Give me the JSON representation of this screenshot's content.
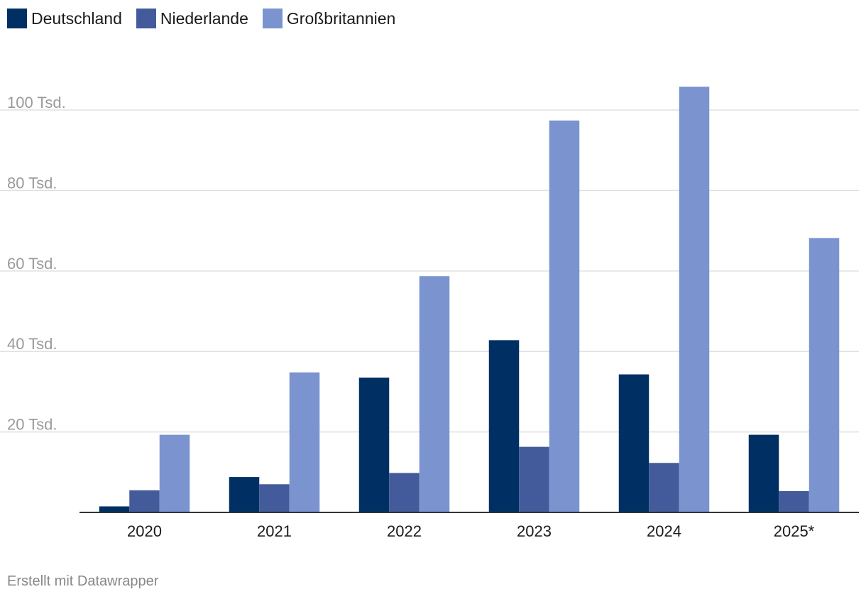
{
  "chart_data": {
    "type": "bar",
    "categories": [
      "2020",
      "2021",
      "2022",
      "2023",
      "2024",
      "2025*"
    ],
    "series": [
      {
        "name": "Deutschland",
        "color": "#003063",
        "values": [
          1500,
          8800,
          33500,
          42800,
          34300,
          19300
        ]
      },
      {
        "name": "Niederlande",
        "color": "#435b9a",
        "values": [
          5500,
          7000,
          9800,
          16300,
          12300,
          5300
        ]
      },
      {
        "name": "Großbritannien",
        "color": "#7b94cf",
        "values": [
          19300,
          34800,
          58700,
          97400,
          105800,
          68200
        ]
      }
    ],
    "ylim": [
      0,
      115000
    ],
    "yticks": [
      {
        "value": 20000,
        "label": "20 Tsd."
      },
      {
        "value": 40000,
        "label": "40 Tsd."
      },
      {
        "value": 60000,
        "label": "60 Tsd."
      },
      {
        "value": 80000,
        "label": "80 Tsd."
      },
      {
        "value": 100000,
        "label": "100 Tsd."
      }
    ],
    "grid": true,
    "legend": "top-left"
  },
  "footer": {
    "credit": "Erstellt mit Datawrapper"
  }
}
